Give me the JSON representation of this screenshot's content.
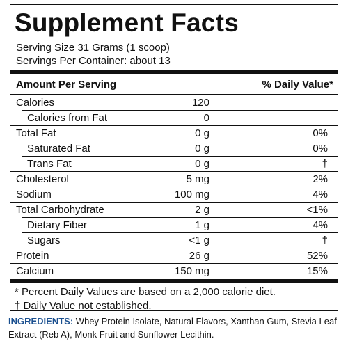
{
  "header": {
    "title": "Supplement Facts"
  },
  "serving": {
    "size": "Serving Size 31 Grams (1 scoop)",
    "servings": "Servings Per Container: about 13"
  },
  "table": {
    "header": [
      "Amount Per Serving",
      "% Daily Value*"
    ],
    "rows": [
      [
        "Calories",
        "120"
      ],
      [
        "Calories from Fat",
        "0"
      ],
      [
        "Total Fat",
        "0 g",
        "0%"
      ],
      [
        "Saturated Fat",
        "0 g",
        "0%"
      ],
      [
        "Trans Fat",
        "0 g",
        "†"
      ],
      [
        "Cholesterol",
        "5 mg",
        "2%"
      ],
      [
        "Sodium",
        "100 mg",
        "4%"
      ],
      [
        "Total Carbohydrate",
        "2 g",
        "<1%"
      ],
      [
        "Dietary Fiber",
        "1 g",
        "4%"
      ],
      [
        "Sugars",
        "<1 g",
        "†"
      ],
      [
        "Protein",
        "26 g",
        "52%"
      ],
      [
        "Calcium",
        "150 mg",
        "15%"
      ]
    ]
  },
  "footnotes": [
    "* Percent Daily Values are based on a 2,000 calorie diet.",
    "† Daily Value not established."
  ],
  "ingredients": {
    "label": "INGREDIENTS:",
    "text": "Whey Protein Isolate, Natural Flavors, Xanthan Gum, Stevia Leaf Extract (Reb A), Monk Fruit and Sunflower Lecithin."
  }
}
